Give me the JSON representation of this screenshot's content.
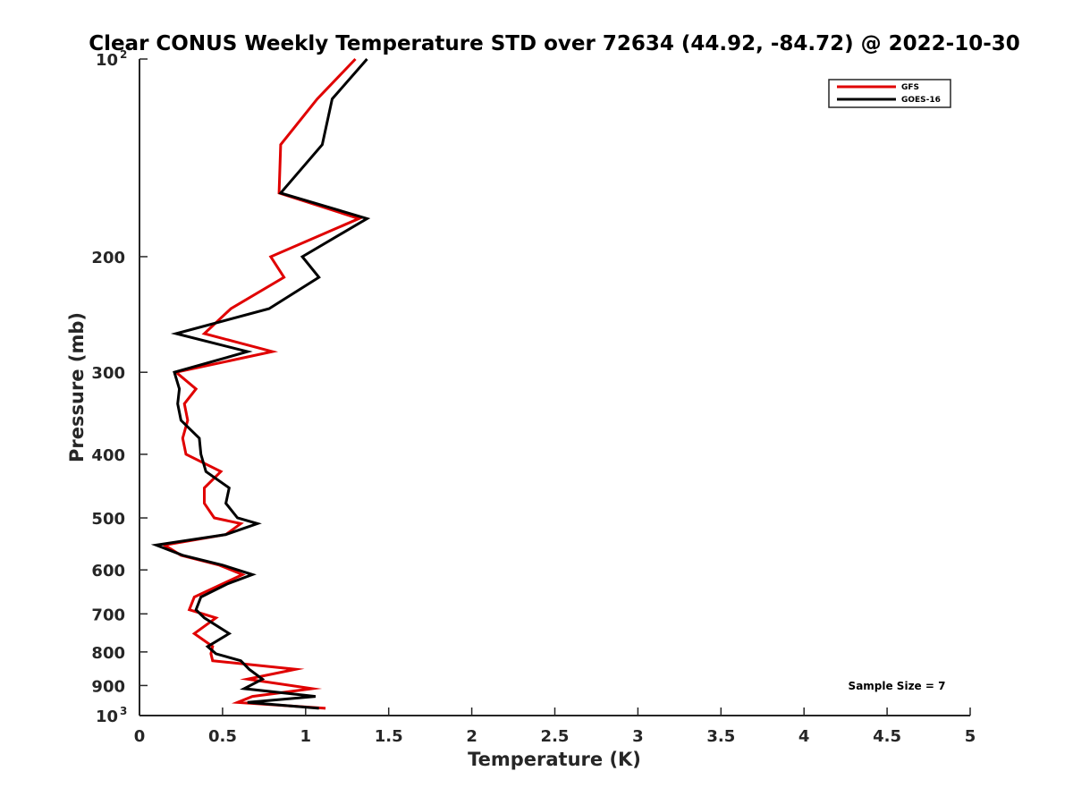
{
  "chart_data": {
    "type": "line",
    "title": "Clear CONUS Weekly Temperature STD over 72634 (44.92, -84.72) @ 2022-10-30",
    "xlabel": "Temperature (K)",
    "ylabel": "Pressure (mb)",
    "xlim": [
      0,
      5
    ],
    "ylim": [
      100,
      1000
    ],
    "y_scale": "log",
    "y_reversed": true,
    "grid": false,
    "legend_position": "top-right",
    "x_ticks": [
      {
        "value": 0,
        "label": "0"
      },
      {
        "value": 0.5,
        "label": "0.5"
      },
      {
        "value": 1,
        "label": "1"
      },
      {
        "value": 1.5,
        "label": "1.5"
      },
      {
        "value": 2,
        "label": "2"
      },
      {
        "value": 2.5,
        "label": "2.5"
      },
      {
        "value": 3,
        "label": "3"
      },
      {
        "value": 3.5,
        "label": "3.5"
      },
      {
        "value": 4,
        "label": "4"
      },
      {
        "value": 4.5,
        "label": "4.5"
      },
      {
        "value": 5,
        "label": "5"
      }
    ],
    "y_ticks": [
      {
        "value": 100,
        "base": "10",
        "exp": "2"
      },
      {
        "value": 200,
        "base": "200",
        "exp": ""
      },
      {
        "value": 300,
        "base": "300",
        "exp": ""
      },
      {
        "value": 400,
        "base": "400",
        "exp": ""
      },
      {
        "value": 500,
        "base": "500",
        "exp": ""
      },
      {
        "value": 600,
        "base": "600",
        "exp": ""
      },
      {
        "value": 700,
        "base": "700",
        "exp": ""
      },
      {
        "value": 800,
        "base": "800",
        "exp": ""
      },
      {
        "value": 900,
        "base": "900",
        "exp": ""
      },
      {
        "value": 1000,
        "base": "10",
        "exp": "3"
      }
    ],
    "series": [
      {
        "name": "GFS",
        "color": "#e00000",
        "x": [
          1.3,
          1.07,
          0.85,
          0.84,
          1.32,
          0.79,
          0.87,
          0.55,
          0.39,
          0.8,
          0.22,
          0.34,
          0.27,
          0.29,
          0.26,
          0.28,
          0.49,
          0.39,
          0.39,
          0.45,
          0.61,
          0.52,
          0.15,
          0.25,
          0.48,
          0.62,
          0.5,
          0.33,
          0.3,
          0.46,
          0.33,
          0.44,
          0.43,
          0.44,
          0.94,
          0.65,
          1.04,
          0.68,
          0.59,
          1.12
        ],
        "y": [
          100,
          115,
          135,
          160,
          175,
          200,
          215,
          240,
          262,
          279,
          300,
          318,
          335,
          355,
          378,
          400,
          425,
          450,
          475,
          500,
          510,
          530,
          550,
          570,
          590,
          610,
          630,
          660,
          690,
          710,
          750,
          785,
          805,
          825,
          850,
          880,
          910,
          935,
          955,
          975
        ]
      },
      {
        "name": "GOES-16",
        "color": "#000000",
        "x": [
          1.37,
          1.16,
          1.1,
          0.85,
          1.37,
          0.98,
          1.08,
          0.78,
          0.22,
          0.65,
          0.21,
          0.24,
          0.23,
          0.25,
          0.36,
          0.37,
          0.4,
          0.54,
          0.52,
          0.59,
          0.71,
          0.52,
          0.1,
          0.26,
          0.5,
          0.68,
          0.53,
          0.37,
          0.34,
          0.39,
          0.54,
          0.41,
          0.46,
          0.61,
          0.66,
          0.74,
          0.63,
          1.06,
          0.65,
          1.08
        ],
        "y": [
          100,
          115,
          135,
          160,
          175,
          200,
          215,
          240,
          262,
          279,
          300,
          318,
          335,
          355,
          378,
          400,
          425,
          450,
          475,
          500,
          510,
          530,
          550,
          570,
          590,
          610,
          630,
          660,
          690,
          710,
          750,
          785,
          805,
          825,
          850,
          880,
          910,
          935,
          955,
          975
        ]
      }
    ],
    "annotations": [
      {
        "text": "Sample Size = 7"
      }
    ]
  }
}
